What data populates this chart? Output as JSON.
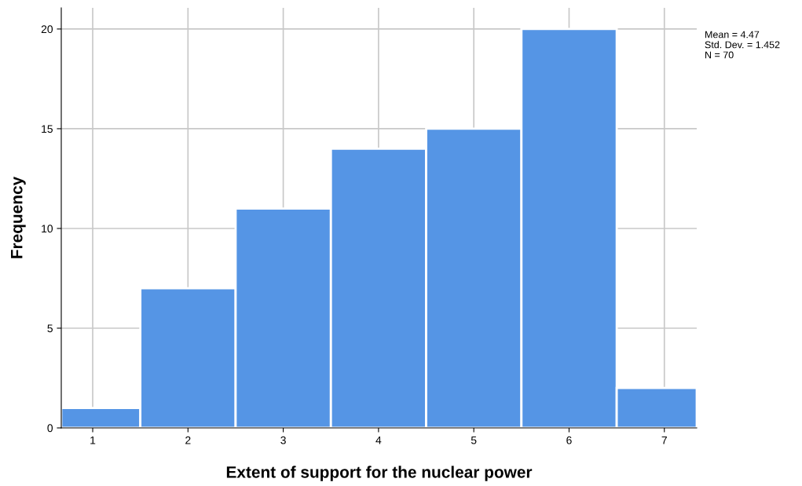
{
  "chart_data": {
    "type": "histogram",
    "xlabel": "Extent of support for the nuclear power",
    "ylabel": "Frequency",
    "bins": [
      0.67,
      1.5,
      2.5,
      3.5,
      4.5,
      5.5,
      6.5,
      7.34
    ],
    "values": [
      1,
      7,
      11,
      14,
      15,
      20,
      2
    ],
    "color": "#5595e5",
    "xlim": [
      0.67,
      7.34
    ],
    "xticks": [
      1,
      2,
      3,
      4,
      5,
      6,
      7
    ],
    "ylim": [
      0,
      21.06
    ],
    "yticks": [
      0,
      5,
      10,
      15,
      20
    ],
    "grid": true,
    "annotations": [
      "Mean = 4.47",
      "Std. Dev. = 1.452",
      "N = 70"
    ]
  }
}
